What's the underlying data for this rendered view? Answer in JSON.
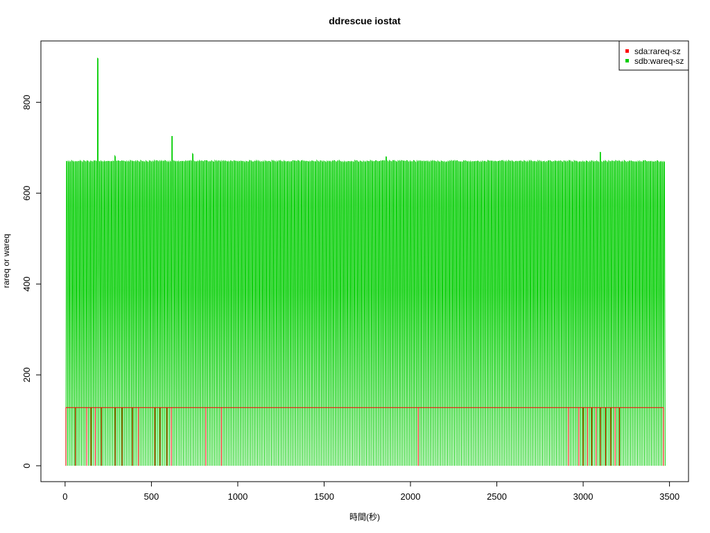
{
  "chart_data": {
    "type": "line",
    "title": "ddrescue iostat",
    "xlabel": "時間(秒)",
    "ylabel": "rareq or wareq",
    "xlim": [
      -140,
      3610
    ],
    "ylim": [
      -35,
      935
    ],
    "xticks": [
      0,
      500,
      1000,
      1500,
      2000,
      2500,
      3000,
      3500
    ],
    "yticks": [
      0,
      200,
      400,
      600,
      800
    ],
    "legend_position": "top-right",
    "grid": false,
    "series": [
      {
        "name": "sda:rareq-sz",
        "color": "#ff0000",
        "pattern": "square-wave",
        "baseline": 0,
        "high_value": 128,
        "x_start": 5,
        "x_end": 3465,
        "dip_x": [
          5,
          60,
          125,
          150,
          175,
          210,
          290,
          330,
          390,
          425,
          520,
          550,
          590,
          615,
          815,
          905,
          2045,
          2915,
          2975,
          3000,
          3025,
          3050,
          3075,
          3100,
          3130,
          3160,
          3185,
          3210,
          3465
        ]
      },
      {
        "name": "sdb:wareq-sz",
        "color": "#00cd00",
        "pattern": "oscillation",
        "baseline": 0,
        "typical_peak": 672,
        "x_start": 5,
        "x_end": 3465,
        "period_seconds": 10,
        "spikes": [
          {
            "x": 190,
            "y": 897
          },
          {
            "x": 615,
            "y": 725
          },
          {
            "x": 740,
            "y": 687
          },
          {
            "x": 3100,
            "y": 690
          },
          {
            "x": 1855,
            "y": 680
          },
          {
            "x": 290,
            "y": 682
          }
        ]
      }
    ]
  }
}
